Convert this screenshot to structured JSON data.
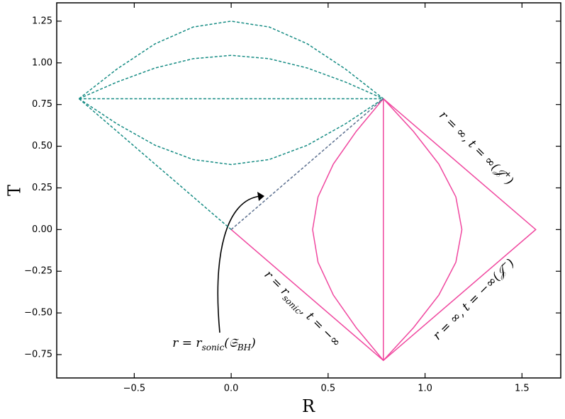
{
  "chart_data": {
    "type": "line",
    "xlabel": "R",
    "ylabel": "T",
    "xlim": [
      -0.9,
      1.7
    ],
    "ylim": [
      -0.89,
      1.36
    ],
    "xticks": [
      {
        "value": -0.5,
        "label": "−0.5"
      },
      {
        "value": 0,
        "label": "0.0"
      },
      0.5,
      {
        "value": 1,
        "label": "1.0"
      },
      1.5
    ],
    "yticks": [
      {
        "value": -0.75,
        "label": "−0.75"
      },
      {
        "value": -0.5,
        "label": "−0.50"
      },
      {
        "value": -0.25,
        "label": "−0.25"
      },
      {
        "value": 0,
        "label": "0.00"
      },
      0.25,
      {
        "value": 0.5,
        "label": "0.50"
      },
      0.75,
      {
        "value": 1,
        "label": "1.00"
      },
      1.25
    ],
    "series": [
      {
        "color": "#168c84",
        "dashed": true,
        "x": [
          -0.785,
          -0.589,
          -0.393,
          -0.196,
          0,
          0.196,
          0.393,
          0.589,
          0.785
        ],
        "values": [
          0.785,
          0.963,
          1.114,
          1.215,
          1.25,
          1.215,
          1.114,
          0.963,
          0.785
        ]
      },
      {
        "color": "#168c84",
        "dashed": true,
        "x": [
          -0.785,
          -0.589,
          -0.393,
          -0.196,
          0,
          0.196,
          0.393,
          0.589,
          0.785
        ],
        "values": [
          0.785,
          0.885,
          0.969,
          1.025,
          1.045,
          1.025,
          0.969,
          0.885,
          0.785
        ]
      },
      {
        "color": "#168c84",
        "dashed": true,
        "x": [
          -0.785,
          0.785
        ],
        "values": [
          0.785,
          0.785
        ]
      },
      {
        "color": "#168c84",
        "dashed": true,
        "x": [
          -0.785,
          -0.589,
          -0.393,
          -0.196,
          0,
          0.196,
          0.393,
          0.589,
          0.785
        ],
        "values": [
          0.785,
          0.634,
          0.506,
          0.42,
          0.39,
          0.42,
          0.506,
          0.634,
          0.785
        ]
      },
      {
        "color": "#168c84",
        "dashed": true,
        "x": [
          -0.785,
          0
        ],
        "values": [
          0.785,
          0
        ]
      },
      {
        "color": "#f0479f",
        "dashed": false,
        "x": [
          0,
          0.785,
          1.571,
          0.785
        ],
        "values": [
          0,
          -0.785,
          0,
          0.785
        ]
      },
      {
        "color": "#f0479f",
        "dashed": false,
        "x": [
          0.785,
          0.785
        ],
        "values": [
          -0.785,
          0.785
        ]
      },
      {
        "color": "#f0479f",
        "dashed": false,
        "x": [
          0.785,
          0.645,
          0.527,
          0.448,
          0.42,
          0.448,
          0.527,
          0.645,
          0.785
        ],
        "values": [
          0.785,
          0.589,
          0.393,
          0.196,
          0,
          -0.196,
          -0.393,
          -0.589,
          -0.785
        ]
      },
      {
        "color": "#f0479f",
        "dashed": false,
        "x": [
          0.785,
          0.94,
          1.071,
          1.159,
          1.19,
          1.159,
          1.071,
          0.94,
          0.785
        ],
        "values": [
          0.785,
          0.589,
          0.393,
          0.196,
          0,
          -0.196,
          -0.393,
          -0.589,
          -0.785
        ]
      },
      {
        "color": "#5b6f8f",
        "dashed": true,
        "x": [
          0,
          0.785
        ],
        "values": [
          0,
          0.785
        ]
      }
    ],
    "annotations": [
      {
        "parts": [
          {
            "text": "r = ∞, t = ∞(𝒥"
          },
          {
            "sup": "+"
          },
          {
            "text": ")"
          }
        ]
      },
      {
        "parts": [
          {
            "text": "r = ∞, t = −∞(𝒥"
          },
          {
            "sup": "−"
          },
          {
            "text": ")"
          }
        ]
      },
      {
        "parts": [
          {
            "text": "r = r"
          },
          {
            "sub": "sonic"
          },
          {
            "text": ", t = −∞"
          }
        ]
      },
      {
        "parts": [
          {
            "text": "r = r"
          },
          {
            "sub": "sonic"
          },
          {
            "text": "(𝔖"
          },
          {
            "sub": "BH"
          },
          {
            "text": ")"
          }
        ]
      }
    ]
  }
}
